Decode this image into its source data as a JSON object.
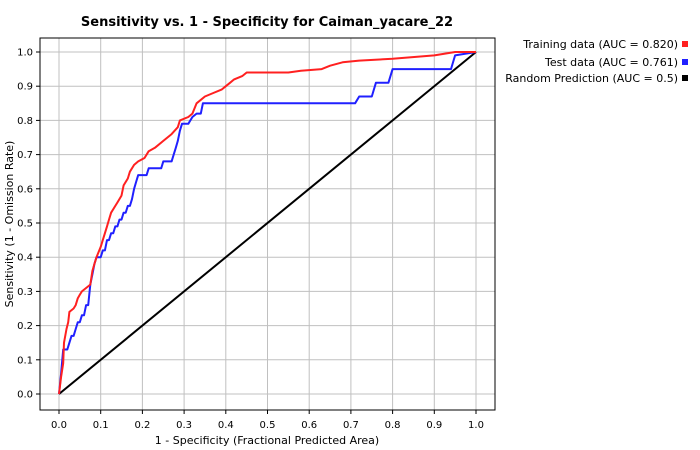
{
  "chart_data": {
    "type": "line",
    "title": "Sensitivity vs. 1 - Specificity for Caiman_yacare_22",
    "xlabel": "1 - Specificity  (Fractional Predicted Area)",
    "ylabel": "Sensitivity (1 - Omission Rate)",
    "xlim": [
      0,
      1
    ],
    "ylim": [
      0,
      1
    ],
    "x_ticks": [
      "0.0",
      "0.1",
      "0.2",
      "0.3",
      "0.4",
      "0.5",
      "0.6",
      "0.7",
      "0.8",
      "0.9",
      "1.0"
    ],
    "y_ticks": [
      "0.0",
      "0.1",
      "0.2",
      "0.3",
      "0.4",
      "0.5",
      "0.6",
      "0.7",
      "0.8",
      "0.9",
      "1.0"
    ],
    "grid": true,
    "legend_position": "top-right outside plot",
    "series": [
      {
        "name": "Training data (AUC = 0.820)",
        "color": "#ff2020",
        "points": [
          [
            0,
            0
          ],
          [
            0.005,
            0.05
          ],
          [
            0.01,
            0.09
          ],
          [
            0.012,
            0.15
          ],
          [
            0.018,
            0.19
          ],
          [
            0.022,
            0.21
          ],
          [
            0.025,
            0.24
          ],
          [
            0.035,
            0.25
          ],
          [
            0.04,
            0.26
          ],
          [
            0.045,
            0.28
          ],
          [
            0.05,
            0.29
          ],
          [
            0.055,
            0.3
          ],
          [
            0.065,
            0.31
          ],
          [
            0.075,
            0.32
          ],
          [
            0.08,
            0.36
          ],
          [
            0.085,
            0.38
          ],
          [
            0.09,
            0.4
          ],
          [
            0.1,
            0.43
          ],
          [
            0.105,
            0.45
          ],
          [
            0.115,
            0.49
          ],
          [
            0.12,
            0.51
          ],
          [
            0.125,
            0.53
          ],
          [
            0.135,
            0.55
          ],
          [
            0.14,
            0.56
          ],
          [
            0.15,
            0.58
          ],
          [
            0.155,
            0.61
          ],
          [
            0.165,
            0.63
          ],
          [
            0.17,
            0.65
          ],
          [
            0.18,
            0.67
          ],
          [
            0.19,
            0.68
          ],
          [
            0.205,
            0.69
          ],
          [
            0.215,
            0.71
          ],
          [
            0.23,
            0.72
          ],
          [
            0.25,
            0.74
          ],
          [
            0.27,
            0.76
          ],
          [
            0.285,
            0.78
          ],
          [
            0.29,
            0.8
          ],
          [
            0.31,
            0.81
          ],
          [
            0.32,
            0.82
          ],
          [
            0.33,
            0.85
          ],
          [
            0.35,
            0.87
          ],
          [
            0.37,
            0.88
          ],
          [
            0.39,
            0.89
          ],
          [
            0.4,
            0.9
          ],
          [
            0.41,
            0.91
          ],
          [
            0.42,
            0.92
          ],
          [
            0.44,
            0.93
          ],
          [
            0.45,
            0.94
          ],
          [
            0.55,
            0.94
          ],
          [
            0.58,
            0.945
          ],
          [
            0.63,
            0.95
          ],
          [
            0.65,
            0.96
          ],
          [
            0.68,
            0.97
          ],
          [
            0.72,
            0.975
          ],
          [
            0.8,
            0.98
          ],
          [
            0.9,
            0.99
          ],
          [
            0.95,
            1.0
          ],
          [
            1.0,
            1.0
          ]
        ]
      },
      {
        "name": "Test data (AUC = 0.761)",
        "color": "#2020ff",
        "points": [
          [
            0,
            0
          ],
          [
            0.005,
            0.06
          ],
          [
            0.01,
            0.13
          ],
          [
            0.02,
            0.13
          ],
          [
            0.025,
            0.15
          ],
          [
            0.03,
            0.17
          ],
          [
            0.035,
            0.17
          ],
          [
            0.04,
            0.19
          ],
          [
            0.045,
            0.21
          ],
          [
            0.05,
            0.21
          ],
          [
            0.055,
            0.23
          ],
          [
            0.06,
            0.23
          ],
          [
            0.065,
            0.26
          ],
          [
            0.07,
            0.26
          ],
          [
            0.075,
            0.32
          ],
          [
            0.08,
            0.35
          ],
          [
            0.085,
            0.38
          ],
          [
            0.09,
            0.4
          ],
          [
            0.1,
            0.4
          ],
          [
            0.105,
            0.42
          ],
          [
            0.11,
            0.42
          ],
          [
            0.115,
            0.45
          ],
          [
            0.12,
            0.45
          ],
          [
            0.125,
            0.47
          ],
          [
            0.13,
            0.47
          ],
          [
            0.135,
            0.49
          ],
          [
            0.14,
            0.49
          ],
          [
            0.145,
            0.51
          ],
          [
            0.15,
            0.51
          ],
          [
            0.155,
            0.53
          ],
          [
            0.16,
            0.53
          ],
          [
            0.165,
            0.55
          ],
          [
            0.17,
            0.55
          ],
          [
            0.175,
            0.57
          ],
          [
            0.18,
            0.6
          ],
          [
            0.185,
            0.62
          ],
          [
            0.19,
            0.64
          ],
          [
            0.2,
            0.64
          ],
          [
            0.21,
            0.64
          ],
          [
            0.215,
            0.66
          ],
          [
            0.245,
            0.66
          ],
          [
            0.25,
            0.68
          ],
          [
            0.27,
            0.68
          ],
          [
            0.275,
            0.7
          ],
          [
            0.28,
            0.72
          ],
          [
            0.285,
            0.74
          ],
          [
            0.29,
            0.77
          ],
          [
            0.295,
            0.79
          ],
          [
            0.31,
            0.79
          ],
          [
            0.32,
            0.81
          ],
          [
            0.33,
            0.82
          ],
          [
            0.34,
            0.82
          ],
          [
            0.345,
            0.85
          ],
          [
            0.355,
            0.85
          ],
          [
            0.71,
            0.85
          ],
          [
            0.72,
            0.87
          ],
          [
            0.75,
            0.87
          ],
          [
            0.76,
            0.91
          ],
          [
            0.79,
            0.91
          ],
          [
            0.8,
            0.95
          ],
          [
            0.94,
            0.95
          ],
          [
            0.95,
            0.99
          ],
          [
            1.0,
            1.0
          ]
        ]
      },
      {
        "name": "Random Prediction (AUC = 0.5)",
        "color": "#000000",
        "points": [
          [
            0,
            0
          ],
          [
            1,
            1
          ]
        ]
      }
    ]
  }
}
